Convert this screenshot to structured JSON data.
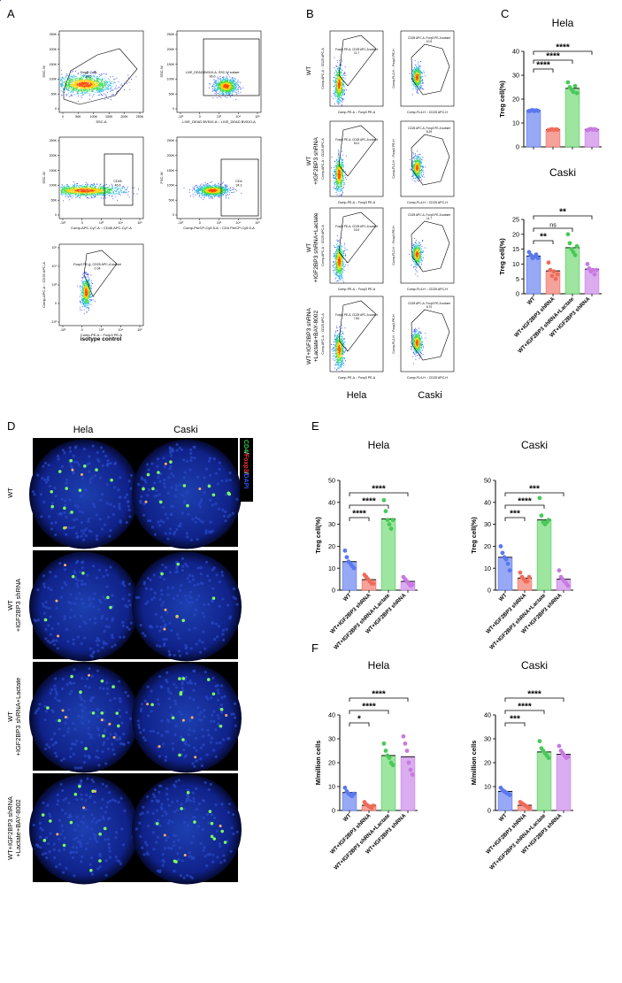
{
  "panels": {
    "A": {
      "letter": "A",
      "plots": [
        {
          "x_label": "SSC-A",
          "y_label": "SSC-W",
          "gate": "Single Cells",
          "gate_value": "88.5",
          "y_ticks": [
            "250K",
            "200K",
            "150K",
            "100K",
            "50K",
            "0"
          ],
          "x_ticks": [
            "0",
            "50K",
            "100K",
            "150K",
            "200K",
            "250K"
          ]
        },
        {
          "x_label": "LIVE_DEAD BV510-A :: LIVE_DEAD BV510-A",
          "y_label": "SSC-W",
          "gate": "LIVE_DEAD BV510-A, SSC-W subset",
          "gate_value": "96.6",
          "y_ticks": [
            "250K",
            "200K",
            "150K",
            "100K",
            "50K",
            "0"
          ],
          "x_ticks": [
            "-10³",
            "0",
            "10³",
            "10⁴",
            "10⁵"
          ]
        },
        {
          "x_label": "Comp-APC-Cy7-A :: CD45 APC-Cy7-A",
          "y_label": "SSC-W",
          "gate": "CD45",
          "gate_value": "46.6",
          "y_ticks": [
            "250K",
            "200K",
            "150K",
            "100K",
            "50K",
            "0"
          ],
          "x_ticks": [
            "-10³",
            "0",
            "10³",
            "10⁴",
            "10⁵"
          ]
        },
        {
          "x_label": "Comp-PerCP-Cy5.5-A :: CD4 PerCP-Cy5.5-A",
          "y_label": "FSC-W",
          "gate": "CD4",
          "gate_value": "34.2",
          "y_ticks": [
            "250K",
            "200K",
            "150K",
            "100K",
            "50K",
            "0"
          ],
          "x_ticks": [
            "-10³",
            "0",
            "10³",
            "10⁴",
            "10⁵"
          ]
        },
        {
          "x_label": "Comp-PE-A :: Foxp3 PE-A",
          "y_label": "Comp-APC-A :: CD25 APC-A",
          "gate": "Foxp3 PE-A, CD25 APC-A subset",
          "gate_value": "0.34",
          "y_ticks": [
            "10⁵",
            "10⁴",
            "10³",
            "0",
            "-10³"
          ],
          "x_ticks": [
            "-10³",
            "0",
            "10³",
            "10⁴",
            "10⁵"
          ]
        }
      ],
      "caption": "isotype control"
    },
    "B": {
      "letter": "B",
      "rows": [
        {
          "label_lines": [
            "WT"
          ],
          "hela_value": "11.7",
          "caski_value": "10.5"
        },
        {
          "label_lines": [
            "WT",
            "+IGF2BP3 shRNA"
          ],
          "hela_value": "8.01",
          "caski_value": "8.25"
        },
        {
          "label_lines": [
            "WT",
            "+IGF2BP3 shRNA+Lactate"
          ],
          "hela_value": "15.5",
          "caski_value": "11.7"
        },
        {
          "label_lines": [
            "WT+IGF2BP3 shRNA",
            "+Lactate+BAY-8002"
          ],
          "hela_value": "7.84",
          "caski_value": "8.70"
        }
      ],
      "hela_gate": "Foxp3 PE-A, CD25 APC-A subset",
      "caski_gate": "CD25 APC-A, Foxp3 PE-A subset",
      "hela_x": "Comp-PE-A :: Foxp3 PE-A",
      "hela_y": "Comp-APC-A :: CD25 APC-A",
      "caski_x": "Comp-FL4-H :: CD25 APC-H",
      "caski_y": "Comp-FL2-H :: Foxp3 PE-H",
      "col_labels": [
        "Hela",
        "Caski"
      ]
    },
    "D": {
      "letter": "D",
      "col_labels": [
        "Hela",
        "Caski"
      ],
      "row_labels": [
        [
          "WT"
        ],
        [
          "WT",
          "+IGF2BP3 shRNA"
        ],
        [
          "WT",
          "+IGF2BP3 shRNA+Lactate"
        ],
        [
          "WT+IGF2BP3 shRNA",
          "+Lactate+BAY-8002"
        ]
      ],
      "legend": [
        {
          "text": "CD4",
          "color": "#2ecc40"
        },
        {
          "text": "/",
          "color": "#ffffff"
        },
        {
          "text": "Foxp3",
          "color": "#ff3030"
        },
        {
          "text": "/",
          "color": "#ffffff"
        },
        {
          "text": "DAPI",
          "color": "#3050ff"
        }
      ]
    }
  },
  "chart_data": [
    {
      "type": "bar",
      "panel": "C",
      "title": "Hela",
      "ylabel": "Treg cell(%)",
      "ylim": [
        0,
        40
      ],
      "yticks": [
        0,
        10,
        20,
        30,
        40
      ],
      "categories": [
        "WT",
        "WT+IGF2BP3 shRNA",
        "WT+IGF2BP3 shRNA+Lactate",
        "WT+IGF2BP3 shRNA +Lactate+BAY-8002"
      ],
      "values": [
        15.2,
        7.2,
        24.5,
        7.3
      ],
      "points": [
        [
          15,
          15.2,
          15.4,
          15,
          15.3,
          15.1
        ],
        [
          7,
          7.2,
          7.4,
          7.1,
          7.3,
          7.2
        ],
        [
          27,
          25,
          24,
          23,
          25.5,
          22.5
        ],
        [
          7,
          7.3,
          7.5,
          7.2,
          7.4,
          7.1
        ]
      ],
      "sig": [
        {
          "label": "****",
          "to": 1
        },
        {
          "label": "****",
          "to": 2
        },
        {
          "label": "****",
          "to": 3
        }
      ],
      "show_xlabels": false
    },
    {
      "type": "bar",
      "panel": "C",
      "title": "Caski",
      "ylabel": "Treg cell(%)",
      "ylim": [
        0,
        25
      ],
      "yticks": [
        0,
        5,
        10,
        15,
        20,
        25
      ],
      "categories": [
        "WT",
        "WT+IGF2BP3 shRNA",
        "WT+IGF2BP3 shRNA+Lactate",
        "WT+IGF2BP3 shRNA +Lactate+BAY-8002"
      ],
      "values": [
        12.7,
        7.7,
        15.5,
        8.3
      ],
      "points": [
        [
          14,
          13,
          12,
          12.5,
          13.2,
          12
        ],
        [
          10.5,
          8,
          6,
          7.5,
          5,
          6.5
        ],
        [
          20,
          17,
          15,
          14,
          13,
          16
        ],
        [
          10,
          8.5,
          7.5,
          8,
          6.5,
          8
        ]
      ],
      "sig": [
        {
          "label": "**",
          "to": 1
        },
        {
          "label": "ns",
          "to": 2
        },
        {
          "label": "**",
          "to": 3
        }
      ],
      "show_xlabels": true
    },
    {
      "type": "bar",
      "panel": "E",
      "title": "Hela",
      "ylabel": "Treg cell(%)",
      "ylim": [
        0,
        50
      ],
      "yticks": [
        0,
        10,
        20,
        30,
        40,
        50
      ],
      "categories": [
        "WT",
        "WT+IGF2BP3 shRNA",
        "WT+IGF2BP3 shRNA+Lactate",
        "WT+IGF2BP3 shRNA +Lactate+BAY-8002"
      ],
      "values": [
        13,
        4.8,
        32.5,
        4
      ],
      "points": [
        [
          18,
          15,
          13,
          12,
          11,
          10
        ],
        [
          7,
          6,
          5,
          4,
          3,
          3
        ],
        [
          41,
          36,
          32,
          30,
          28,
          32
        ],
        [
          6,
          5,
          4,
          3,
          2,
          2.5
        ]
      ],
      "sig": [
        {
          "label": "****",
          "to": 1
        },
        {
          "label": "****",
          "to": 2
        },
        {
          "label": "****",
          "to": 3
        }
      ],
      "show_xlabels": true
    },
    {
      "type": "bar",
      "panel": "E",
      "title": "Caski",
      "ylabel": "Treg cell(%)",
      "ylim": [
        0,
        50
      ],
      "yticks": [
        0,
        10,
        20,
        30,
        40,
        50
      ],
      "categories": [
        "WT",
        "WT+IGF2BP3 shRNA",
        "WT+IGF2BP3 shRNA+Lactate",
        "WT+IGF2BP3 shRNA +Lactate+BAY-8002"
      ],
      "values": [
        15,
        5.5,
        32,
        5
      ],
      "points": [
        [
          20,
          17,
          15,
          14,
          12,
          9
        ],
        [
          8,
          6,
          5,
          4,
          4,
          6
        ],
        [
          42,
          34,
          31,
          30,
          31,
          32
        ],
        [
          9,
          6,
          5,
          4,
          3,
          2
        ]
      ],
      "sig": [
        {
          "label": "***",
          "to": 1
        },
        {
          "label": "****",
          "to": 2
        },
        {
          "label": "***",
          "to": 3
        }
      ],
      "show_xlabels": true
    },
    {
      "type": "bar",
      "panel": "F",
      "title": "Hela",
      "ylabel": "M/million cells",
      "ylim": [
        0,
        40
      ],
      "yticks": [
        0,
        10,
        20,
        30,
        40
      ],
      "categories": [
        "WT",
        "WT+IGF2BP3 shRNA",
        "WT+IGF2BP3 shRNA+Lactate",
        "WT+IGF2BP3 shRNA +Lactate+BAY-8002"
      ],
      "values": [
        7.5,
        2.2,
        23,
        22.5
      ],
      "points": [
        [
          9.5,
          8,
          7,
          6.5,
          6,
          7
        ],
        [
          3.5,
          2.5,
          2,
          1.5,
          1,
          2
        ],
        [
          28,
          25,
          23,
          22,
          20,
          19
        ],
        [
          31,
          28,
          25,
          20,
          17,
          15
        ]
      ],
      "sig": [
        {
          "label": "*",
          "to": 1
        },
        {
          "label": "****",
          "to": 2
        },
        {
          "label": "****",
          "to": 3
        }
      ],
      "show_xlabels": true
    },
    {
      "type": "bar",
      "panel": "F",
      "title": "Caski",
      "ylabel": "M/million cells",
      "ylim": [
        0,
        40
      ],
      "yticks": [
        0,
        10,
        20,
        30,
        40
      ],
      "categories": [
        "WT",
        "WT+IGF2BP3 shRNA",
        "WT+IGF2BP3 shRNA+Lactate",
        "WT+IGF2BP3 shRNA +Lactate+BAY-8002"
      ],
      "values": [
        8,
        2.2,
        24.5,
        23.5
      ],
      "points": [
        [
          9.5,
          8.5,
          8,
          7.5,
          7,
          6.5
        ],
        [
          3.5,
          3,
          2.5,
          2,
          1.5,
          1
        ],
        [
          29,
          26,
          25,
          24,
          23,
          22
        ],
        [
          27,
          25,
          24,
          23,
          22,
          22.5
        ]
      ],
      "sig": [
        {
          "label": "***",
          "to": 1
        },
        {
          "label": "****",
          "to": 2
        },
        {
          "label": "****",
          "to": 3
        }
      ],
      "show_xlabels": true
    }
  ],
  "panel_letters": {
    "C": "C",
    "E": "E",
    "F": "F"
  },
  "colors": {
    "WT": "#5a78f0",
    "shRNA": "#f06a5a",
    "Lactate": "#49c95a",
    "BAY": "#c77ae0",
    "WT_fill": "#97a8f5",
    "shRNA_fill": "#f5a39a",
    "Lactate_fill": "#9ee59f",
    "BAY_fill": "#dbacef"
  }
}
